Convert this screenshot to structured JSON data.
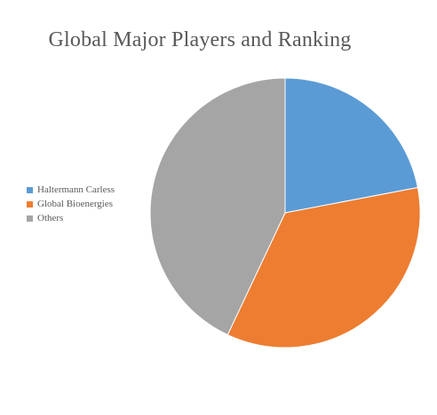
{
  "chart_data": {
    "type": "pie",
    "title": "Global Major Players and Ranking",
    "legend_position": "left",
    "slices": [
      {
        "label": "Haltermann Carless",
        "value": 22,
        "color": "#5B9BD5"
      },
      {
        "label": "Global Bioenergies",
        "value": 35,
        "color": "#ED7D31"
      },
      {
        "label": "Others",
        "value": 43,
        "color": "#A5A5A5"
      }
    ]
  }
}
